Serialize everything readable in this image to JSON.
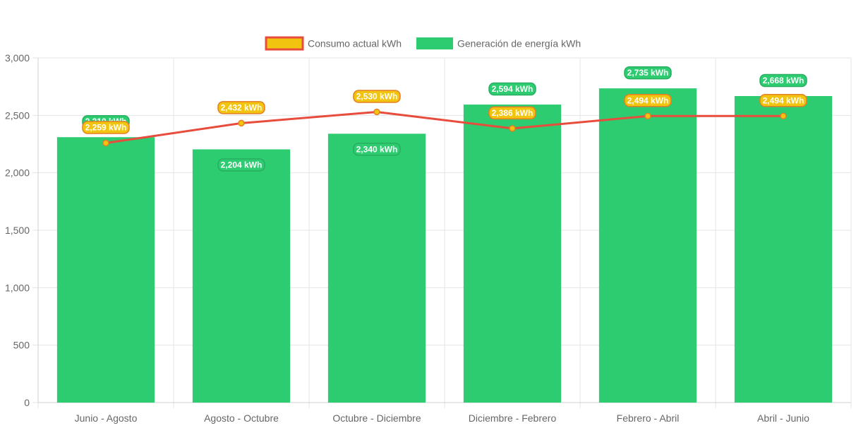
{
  "chart_data": {
    "type": "bar",
    "categories": [
      "Junio - Agosto",
      "Agosto - Octubre",
      "Octubre - Diciembre",
      "Diciembre - Febrero",
      "Febrero - Abril",
      "Abril - Junio"
    ],
    "series": [
      {
        "name": "Consumo actual kWh",
        "type": "line",
        "values": [
          2259,
          2432,
          2530,
          2386,
          2494,
          2494
        ],
        "labels": [
          "2,259 kWh",
          "2,432 kWh",
          "2,530 kWh",
          "2,386 kWh",
          "2,494 kWh",
          "2,494 kWh"
        ],
        "color": "#e74c3c",
        "fill_color": "#f1c40f"
      },
      {
        "name": "Generación de energía kWh",
        "type": "bar",
        "values": [
          2310,
          2204,
          2340,
          2594,
          2735,
          2668
        ],
        "labels": [
          "2,310 kWh",
          "2,204 kWh",
          "2,340 kWh",
          "2,594 kWh",
          "2,735 kWh",
          "2,668 kWh"
        ],
        "color": "#2ecc71"
      }
    ],
    "ylim": [
      0,
      3000
    ],
    "yticks": [
      0,
      500,
      1000,
      1500,
      2000,
      2500,
      3000
    ],
    "ytick_labels": [
      "0",
      "500",
      "1,000",
      "1,500",
      "2,000",
      "2,500",
      "3,000"
    ],
    "grid": true,
    "legend_position": "top-center",
    "title": "",
    "xlabel": "",
    "ylabel": ""
  }
}
